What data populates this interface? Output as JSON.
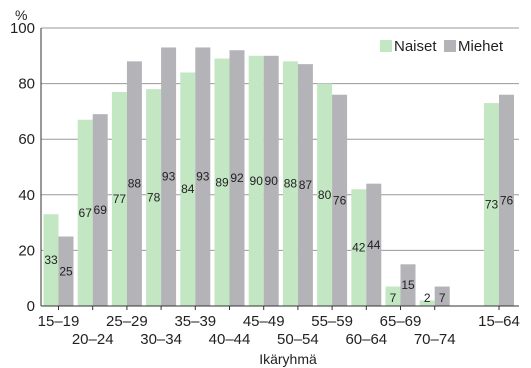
{
  "chart_data": {
    "type": "bar",
    "title": "",
    "ylabel": "%",
    "xlabel": "Ikäryhmä",
    "ylim": [
      0,
      100
    ],
    "yticks": [
      0,
      20,
      40,
      60,
      80,
      100
    ],
    "legend_position": "top-right",
    "grid": true,
    "categories": [
      "15–19",
      "20–24",
      "25–29",
      "30–34",
      "35–39",
      "40–44",
      "45–49",
      "50–54",
      "55–59",
      "60–64",
      "65–69",
      "70–74",
      "15–64"
    ],
    "series": [
      {
        "name": "Naiset",
        "color": "#c3e6c3",
        "values": [
          33,
          67,
          77,
          78,
          84,
          89,
          90,
          88,
          80,
          42,
          7,
          2,
          73
        ]
      },
      {
        "name": "Miehet",
        "color": "#b3b3b8",
        "values": [
          25,
          69,
          88,
          93,
          93,
          92,
          90,
          87,
          76,
          44,
          15,
          7,
          76
        ]
      }
    ]
  }
}
